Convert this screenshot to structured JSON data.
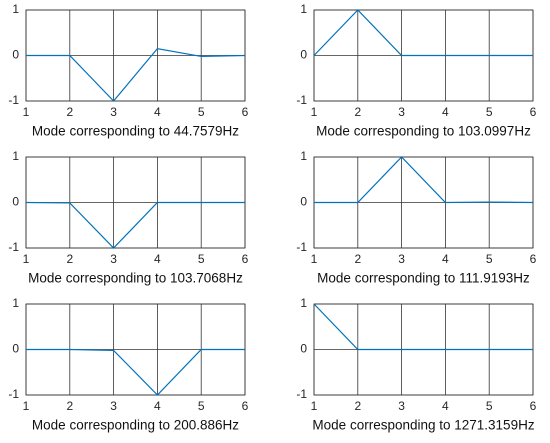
{
  "chart_data": [
    {
      "type": "line",
      "xlabel": "Mode corresponding to 44.7579Hz",
      "x": [
        1,
        2,
        3,
        4,
        5,
        6
      ],
      "values": [
        0,
        0,
        -1,
        0.15,
        -0.02,
        0
      ],
      "color": "#0072bd",
      "xlim": [
        1,
        6
      ],
      "ylim": [
        -1,
        1
      ],
      "xticks": [
        1,
        2,
        3,
        4,
        5,
        6
      ],
      "yticks": [
        -1,
        0,
        1
      ],
      "grid": true
    },
    {
      "type": "line",
      "xlabel": "Mode corresponding to 103.0997Hz",
      "x": [
        1,
        2,
        3,
        4,
        5,
        6
      ],
      "values": [
        0,
        1,
        0,
        0,
        0,
        0
      ],
      "color": "#0072bd",
      "xlim": [
        1,
        6
      ],
      "ylim": [
        -1,
        1
      ],
      "xticks": [
        1,
        2,
        3,
        4,
        5,
        6
      ],
      "yticks": [
        -1,
        0,
        1
      ],
      "grid": true
    },
    {
      "type": "line",
      "xlabel": "Mode corresponding to 103.7068Hz",
      "x": [
        1,
        2,
        3,
        4,
        5,
        6
      ],
      "values": [
        0,
        -0.01,
        -1,
        0,
        0,
        0
      ],
      "color": "#0072bd",
      "xlim": [
        1,
        6
      ],
      "ylim": [
        -1,
        1
      ],
      "xticks": [
        1,
        2,
        3,
        4,
        5,
        6
      ],
      "yticks": [
        -1,
        0,
        1
      ],
      "grid": true
    },
    {
      "type": "line",
      "xlabel": "Mode corresponding to 111.9193Hz",
      "x": [
        1,
        2,
        3,
        4,
        5,
        6
      ],
      "values": [
        0,
        0,
        1,
        0,
        0.01,
        0
      ],
      "color": "#0072bd",
      "xlim": [
        1,
        6
      ],
      "ylim": [
        -1,
        1
      ],
      "xticks": [
        1,
        2,
        3,
        4,
        5,
        6
      ],
      "yticks": [
        -1,
        0,
        1
      ],
      "grid": true
    },
    {
      "type": "line",
      "xlabel": "Mode corresponding to 200.886Hz",
      "x": [
        1,
        2,
        3,
        4,
        5,
        6
      ],
      "values": [
        0,
        0,
        -0.02,
        -1,
        0,
        0
      ],
      "color": "#0072bd",
      "xlim": [
        1,
        6
      ],
      "ylim": [
        -1,
        1
      ],
      "xticks": [
        1,
        2,
        3,
        4,
        5,
        6
      ],
      "yticks": [
        -1,
        0,
        1
      ],
      "grid": true
    },
    {
      "type": "line",
      "xlabel": "Mode corresponding to 1271.3159Hz",
      "x": [
        1,
        2,
        3,
        4,
        5,
        6
      ],
      "values": [
        1,
        0,
        0,
        0,
        0,
        0
      ],
      "color": "#0072bd",
      "xlim": [
        1,
        6
      ],
      "ylim": [
        -1,
        1
      ],
      "xticks": [
        1,
        2,
        3,
        4,
        5,
        6
      ],
      "yticks": [
        -1,
        0,
        1
      ],
      "grid": true
    }
  ]
}
